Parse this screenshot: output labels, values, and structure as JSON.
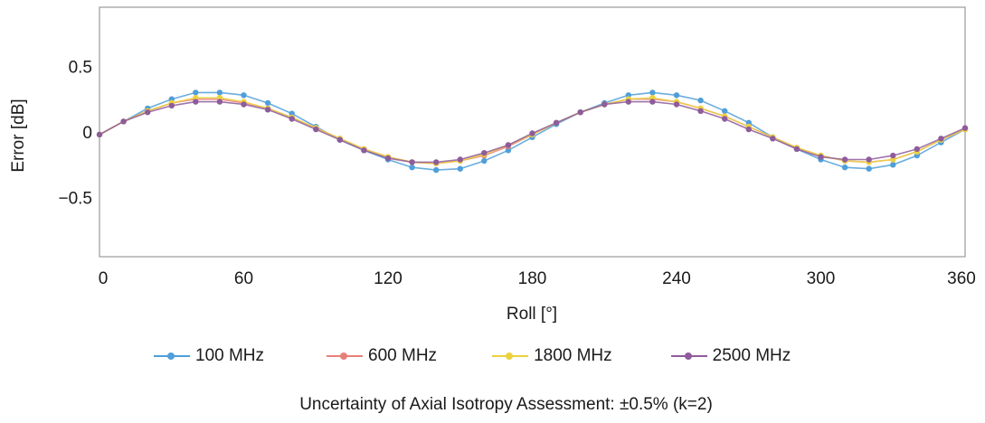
{
  "chart_data": {
    "type": "line",
    "xlabel": "Roll [°]",
    "ylabel": "Error [dB]",
    "xlim": [
      0,
      360
    ],
    "ylim": [
      -0.95,
      0.95
    ],
    "xticks": [
      0,
      60,
      120,
      180,
      240,
      300,
      360
    ],
    "yticks": [
      0.5,
      0,
      -0.5
    ],
    "ytick_labels": [
      "0.5",
      "0",
      "−0.5"
    ],
    "grid": false,
    "legend_position": "bottom",
    "x": [
      0,
      10,
      20,
      30,
      40,
      50,
      60,
      70,
      80,
      90,
      100,
      110,
      120,
      130,
      140,
      150,
      160,
      170,
      180,
      190,
      200,
      210,
      220,
      230,
      240,
      250,
      260,
      270,
      280,
      290,
      300,
      310,
      320,
      330,
      340,
      350,
      360
    ],
    "series": [
      {
        "name": "100 MHz",
        "color": "#4f9fd9",
        "values": [
          -0.02,
          0.08,
          0.18,
          0.25,
          0.3,
          0.3,
          0.28,
          0.22,
          0.14,
          0.04,
          -0.06,
          -0.14,
          -0.21,
          -0.27,
          -0.29,
          -0.28,
          -0.22,
          -0.14,
          -0.04,
          0.06,
          0.15,
          0.22,
          0.28,
          0.3,
          0.28,
          0.24,
          0.16,
          0.07,
          -0.04,
          -0.13,
          -0.21,
          -0.27,
          -0.28,
          -0.25,
          -0.18,
          -0.08,
          0.02
        ]
      },
      {
        "name": "600 MHz",
        "color": "#e8807a",
        "values": [
          -0.02,
          0.08,
          0.16,
          0.22,
          0.25,
          0.25,
          0.22,
          0.18,
          0.11,
          0.03,
          -0.05,
          -0.13,
          -0.19,
          -0.23,
          -0.24,
          -0.22,
          -0.18,
          -0.11,
          -0.02,
          0.07,
          0.15,
          0.21,
          0.25,
          0.25,
          0.23,
          0.18,
          0.12,
          0.04,
          -0.04,
          -0.12,
          -0.18,
          -0.22,
          -0.23,
          -0.21,
          -0.15,
          -0.06,
          0.02
        ]
      },
      {
        "name": "1800 MHz",
        "color": "#ecd23e",
        "values": [
          -0.02,
          0.08,
          0.16,
          0.22,
          0.26,
          0.26,
          0.23,
          0.18,
          0.11,
          0.03,
          -0.05,
          -0.13,
          -0.19,
          -0.23,
          -0.24,
          -0.22,
          -0.17,
          -0.1,
          -0.02,
          0.07,
          0.15,
          0.21,
          0.25,
          0.26,
          0.23,
          0.18,
          0.12,
          0.04,
          -0.04,
          -0.12,
          -0.18,
          -0.22,
          -0.23,
          -0.21,
          -0.15,
          -0.06,
          0.02
        ]
      },
      {
        "name": "2500 MHz",
        "color": "#8e5c9c",
        "values": [
          -0.02,
          0.08,
          0.15,
          0.2,
          0.23,
          0.23,
          0.21,
          0.17,
          0.1,
          0.02,
          -0.06,
          -0.14,
          -0.2,
          -0.23,
          -0.23,
          -0.21,
          -0.16,
          -0.1,
          -0.01,
          0.07,
          0.15,
          0.21,
          0.23,
          0.23,
          0.21,
          0.16,
          0.1,
          0.02,
          -0.05,
          -0.13,
          -0.19,
          -0.21,
          -0.21,
          -0.18,
          -0.13,
          -0.05,
          0.03
        ]
      }
    ]
  },
  "footnote": "Uncertainty of Axial Isotropy Assessment: ±0.5% (k=2)"
}
